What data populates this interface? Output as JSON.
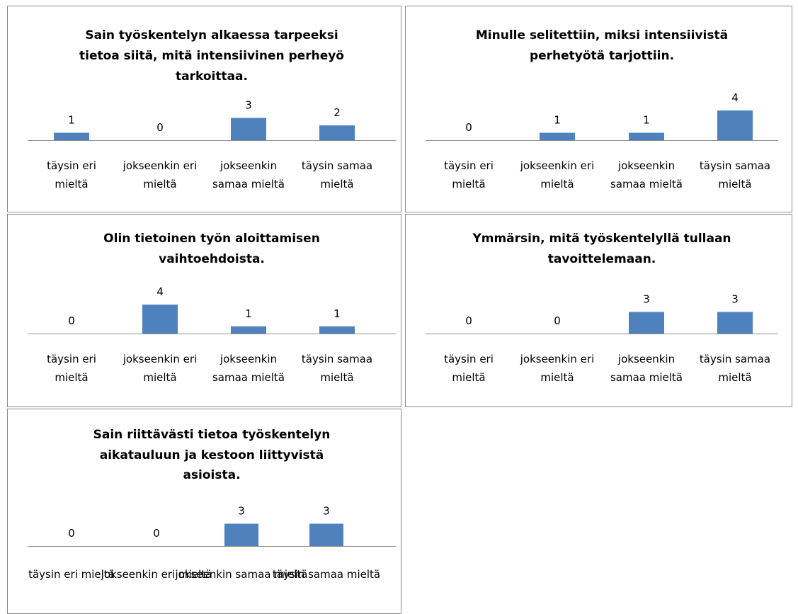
{
  "chart_data": [
    {
      "type": "bar",
      "title": "Sain työskentelyn alkaessa tarpeeksi tietoa siitä, mitä intensiivinen perheyö tarkoittaa.",
      "title_lines": [
        "Sain työskentelyn alkaessa tarpeeksi",
        "tietoa siitä, mitä intensiivinen perheyö",
        "tarkoittaa."
      ],
      "categories": [
        "täysin eri mieltä",
        "jokseenkin eri mieltä",
        "jokseenkin samaa mieltä",
        "täysin samaa mieltä"
      ],
      "category_lines": [
        [
          "täysin eri",
          "mieltä"
        ],
        [
          "jokseenkin eri",
          "mieltä"
        ],
        [
          "jokseenkin",
          "samaa mieltä"
        ],
        [
          "täysin samaa",
          "mieltä"
        ]
      ],
      "values": [
        1,
        0,
        3,
        2
      ],
      "color": "#4f81bd",
      "grid": false,
      "legend": "none"
    },
    {
      "type": "bar",
      "title": "Minulle selitettiin, miksi intensiivistä perhetyötä tarjottiin.",
      "title_lines": [
        "Minulle selitettiin, miksi intensiivistä",
        "perhetyötä tarjottiin."
      ],
      "categories": [
        "täysin eri mieltä",
        "jokseenkin eri mieltä",
        "jokseenkin samaa mieltä",
        "täysin samaa mieltä"
      ],
      "category_lines": [
        [
          "täysin eri",
          "mieltä"
        ],
        [
          "jokseenkin eri",
          "mieltä"
        ],
        [
          "jokseenkin",
          "samaa mieltä"
        ],
        [
          "täysin samaa",
          "mieltä"
        ]
      ],
      "values": [
        0,
        1,
        1,
        4
      ],
      "color": "#4f81bd",
      "grid": false,
      "legend": "none"
    },
    {
      "type": "bar",
      "title": "Olin tietoinen työn aloittamisen vaihtoehdoista.",
      "title_lines": [
        "Olin tietoinen työn aloittamisen",
        "vaihtoehdoista."
      ],
      "categories": [
        "täysin eri mieltä",
        "jokseenkin eri mieltä",
        "jokseenkin samaa mieltä",
        "täysin samaa mieltä"
      ],
      "category_lines": [
        [
          "täysin eri",
          "mieltä"
        ],
        [
          "jokseenkin eri",
          "mieltä"
        ],
        [
          "jokseenkin",
          "samaa mieltä"
        ],
        [
          "täysin samaa",
          "mieltä"
        ]
      ],
      "values": [
        0,
        4,
        1,
        1
      ],
      "color": "#4f81bd",
      "grid": false,
      "legend": "none"
    },
    {
      "type": "bar",
      "title": "Ymmärsin, mitä työskentelyllä tullaan tavoittelemaan.",
      "title_lines": [
        "Ymmärsin, mitä työskentelyllä tullaan",
        "tavoittelemaan."
      ],
      "categories": [
        "täysin eri mieltä",
        "jokseenkin eri mieltä",
        "jokseenkin samaa mieltä",
        "täysin samaa mieltä"
      ],
      "category_lines": [
        [
          "täysin eri",
          "mieltä"
        ],
        [
          "jokseenkin eri",
          "mieltä"
        ],
        [
          "jokseenkin",
          "samaa mieltä"
        ],
        [
          "täysin samaa",
          "mieltä"
        ]
      ],
      "values": [
        0,
        0,
        3,
        3
      ],
      "color": "#4f81bd",
      "grid": false,
      "legend": "none"
    },
    {
      "type": "bar",
      "title": "Sain riittävästi tietoa työskentelyn aikatauluun ja kestoon liittyvistä asioista.",
      "title_lines": [
        "Sain riittävästi tietoa työskentelyn",
        "aikatauluun ja kestoon liittyvistä",
        "asioista."
      ],
      "categories": [
        "täysin eri mieltä",
        "jokseenkin eri mieltä",
        "jokseenkin samaa mieltä",
        "täysin samaa mieltä"
      ],
      "category_lines": [
        [
          "täysin eri mieltä"
        ],
        [
          "jokseenkin eri mieltä"
        ],
        [
          "jokseenkin samaa mieltä"
        ],
        [
          "täysin samaa mieltä"
        ]
      ],
      "values": [
        0,
        0,
        3,
        3
      ],
      "color": "#4f81bd",
      "grid": false,
      "legend": "none"
    }
  ]
}
